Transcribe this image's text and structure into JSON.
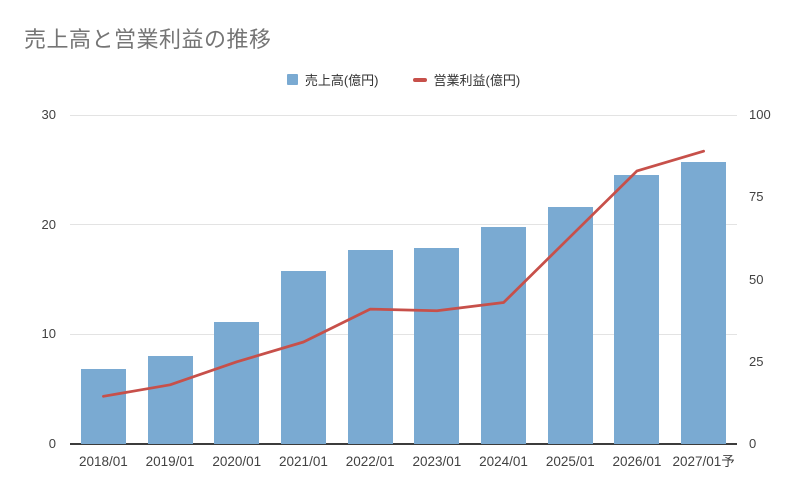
{
  "title": "売上高と営業利益の推移",
  "legend": {
    "sales_label": "売上高(億円)",
    "profit_label": "営業利益(億円)"
  },
  "colors": {
    "bar_blue": "#7aaad2",
    "line_red": "#c7504a",
    "title_gray": "#757575",
    "axis_text": "#424242",
    "gridline": "#e3e3e3"
  },
  "chart_data": {
    "type": "bar",
    "subtype": "combo-bar-line",
    "title": "売上高と営業利益の推移",
    "categories": [
      "2018/01",
      "2019/01",
      "2020/01",
      "2021/01",
      "2022/01",
      "2023/01",
      "2024/01",
      "2025/01",
      "2026/01",
      "2027/01予"
    ],
    "series": [
      {
        "name": "売上高(億円)",
        "type": "bar",
        "axis": "left",
        "color": "#7aaad2",
        "values": [
          6.8,
          8.0,
          11.1,
          15.8,
          17.7,
          17.9,
          19.8,
          21.6,
          24.5,
          25.7
        ]
      },
      {
        "name": "営業利益(億円)",
        "type": "line",
        "axis": "right",
        "color": "#c7504a",
        "values": [
          14.5,
          18,
          25,
          31,
          41,
          40.5,
          43,
          63,
          83,
          89
        ]
      }
    ],
    "left_axis": {
      "min": 0,
      "max": 30,
      "ticks": [
        0,
        10,
        20,
        30
      ]
    },
    "right_axis": {
      "min": 0,
      "max": 100,
      "ticks": [
        0,
        25,
        50,
        75,
        100
      ]
    },
    "grid": true,
    "legend_position": "top"
  }
}
